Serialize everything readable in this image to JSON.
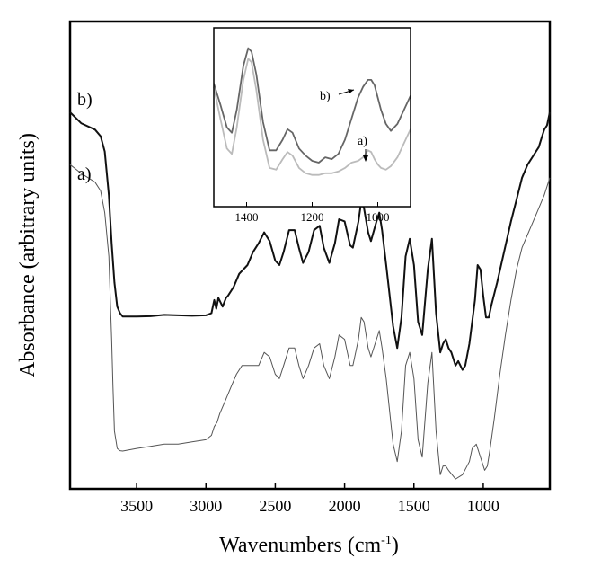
{
  "chart_data": {
    "type": "line",
    "xlabel": "Wavenumbers (cm",
    "xlabel_sup": "-1",
    "xlabel_close": ")",
    "ylabel": "Absorbance (arbitrary units)",
    "xlim": [
      3980,
      520
    ],
    "ylim": [
      0,
      1
    ],
    "x_ticks": [
      3500,
      3000,
      2500,
      2000,
      1500,
      1000
    ],
    "x_tick_labels": [
      "3500",
      "3000",
      "2500",
      "2000",
      "1500",
      "1000"
    ],
    "series": [
      {
        "name": "b)",
        "color": "#111111",
        "x": [
          3980,
          3900,
          3800,
          3760,
          3730,
          3700,
          3680,
          3660,
          3640,
          3620,
          3600,
          3500,
          3400,
          3300,
          3200,
          3100,
          3000,
          2960,
          2940,
          2925,
          2910,
          2880,
          2855,
          2840,
          2800,
          2760,
          2700,
          2660,
          2620,
          2580,
          2540,
          2500,
          2470,
          2440,
          2400,
          2360,
          2330,
          2300,
          2260,
          2220,
          2180,
          2150,
          2110,
          2070,
          2040,
          2000,
          1960,
          1940,
          1900,
          1880,
          1860,
          1830,
          1810,
          1770,
          1750,
          1730,
          1700,
          1650,
          1620,
          1590,
          1560,
          1530,
          1500,
          1470,
          1440,
          1400,
          1370,
          1340,
          1310,
          1290,
          1270,
          1250,
          1230,
          1200,
          1180,
          1150,
          1130,
          1100,
          1080,
          1060,
          1040,
          1020,
          1000,
          980,
          960,
          940,
          900,
          850,
          800,
          760,
          720,
          680,
          640,
          620,
          600,
          580,
          560,
          540,
          520
        ],
        "y": [
          0.85,
          0.825,
          0.81,
          0.795,
          0.76,
          0.66,
          0.55,
          0.46,
          0.405,
          0.39,
          0.382,
          0.382,
          0.383,
          0.386,
          0.385,
          0.384,
          0.385,
          0.39,
          0.42,
          0.4,
          0.425,
          0.405,
          0.425,
          0.43,
          0.45,
          0.48,
          0.5,
          0.53,
          0.55,
          0.575,
          0.555,
          0.51,
          0.5,
          0.53,
          0.58,
          0.58,
          0.54,
          0.505,
          0.53,
          0.58,
          0.59,
          0.54,
          0.505,
          0.55,
          0.605,
          0.6,
          0.545,
          0.54,
          0.6,
          0.645,
          0.63,
          0.575,
          0.555,
          0.6,
          0.62,
          0.58,
          0.5,
          0.36,
          0.31,
          0.38,
          0.52,
          0.56,
          0.5,
          0.37,
          0.34,
          0.49,
          0.56,
          0.39,
          0.3,
          0.32,
          0.33,
          0.31,
          0.3,
          0.27,
          0.28,
          0.26,
          0.27,
          0.32,
          0.37,
          0.42,
          0.5,
          0.49,
          0.43,
          0.38,
          0.38,
          0.41,
          0.46,
          0.53,
          0.6,
          0.65,
          0.7,
          0.73,
          0.75,
          0.76,
          0.77,
          0.79,
          0.81,
          0.82,
          0.85
        ]
      },
      {
        "name": "a)",
        "color": "#555555",
        "x": [
          3980,
          3900,
          3800,
          3760,
          3730,
          3700,
          3690,
          3680,
          3670,
          3660,
          3640,
          3620,
          3600,
          3500,
          3400,
          3300,
          3200,
          3100,
          3000,
          2960,
          2940,
          2920,
          2900,
          2860,
          2820,
          2780,
          2740,
          2700,
          2660,
          2620,
          2580,
          2540,
          2500,
          2470,
          2440,
          2400,
          2360,
          2330,
          2300,
          2260,
          2220,
          2180,
          2150,
          2110,
          2070,
          2040,
          2000,
          1960,
          1940,
          1900,
          1880,
          1860,
          1830,
          1810,
          1770,
          1750,
          1730,
          1700,
          1650,
          1620,
          1590,
          1560,
          1530,
          1500,
          1470,
          1440,
          1400,
          1370,
          1340,
          1310,
          1290,
          1270,
          1250,
          1200,
          1150,
          1100,
          1080,
          1050,
          1030,
          1010,
          990,
          970,
          950,
          920,
          880,
          840,
          800,
          760,
          720,
          680,
          640,
          600,
          560,
          520
        ],
        "y": [
          0.73,
          0.71,
          0.69,
          0.67,
          0.62,
          0.52,
          0.42,
          0.33,
          0.22,
          0.12,
          0.08,
          0.075,
          0.074,
          0.08,
          0.085,
          0.09,
          0.09,
          0.095,
          0.1,
          0.11,
          0.13,
          0.14,
          0.16,
          0.19,
          0.22,
          0.25,
          0.27,
          0.27,
          0.27,
          0.27,
          0.3,
          0.29,
          0.25,
          0.24,
          0.27,
          0.31,
          0.31,
          0.27,
          0.24,
          0.27,
          0.31,
          0.32,
          0.27,
          0.24,
          0.29,
          0.34,
          0.33,
          0.27,
          0.27,
          0.33,
          0.38,
          0.37,
          0.31,
          0.29,
          0.33,
          0.35,
          0.31,
          0.24,
          0.09,
          0.05,
          0.12,
          0.27,
          0.3,
          0.24,
          0.1,
          0.06,
          0.23,
          0.3,
          0.12,
          0.02,
          0.04,
          0.04,
          0.03,
          0.01,
          0.02,
          0.05,
          0.08,
          0.09,
          0.07,
          0.05,
          0.03,
          0.04,
          0.08,
          0.15,
          0.25,
          0.34,
          0.42,
          0.49,
          0.54,
          0.57,
          0.6,
          0.63,
          0.66,
          0.7
        ]
      }
    ],
    "series_labels": [
      {
        "text": "b)",
        "series": "b)"
      },
      {
        "text": "a)",
        "series": "a)"
      }
    ],
    "inset": {
      "xlim": [
        1500,
        900
      ],
      "x_ticks": [
        1400,
        1200,
        1000
      ],
      "x_tick_labels": [
        "1400",
        "1200",
        "1000"
      ],
      "series": [
        {
          "name": "b)",
          "color": "#666666",
          "x": [
            1500,
            1480,
            1460,
            1445,
            1430,
            1410,
            1395,
            1385,
            1370,
            1350,
            1330,
            1310,
            1290,
            1275,
            1260,
            1240,
            1220,
            1200,
            1180,
            1160,
            1140,
            1120,
            1100,
            1080,
            1060,
            1045,
            1030,
            1020,
            1010,
            1000,
            990,
            975,
            960,
            940,
            920,
            900
          ],
          "y": [
            0.7,
            0.58,
            0.45,
            0.42,
            0.55,
            0.8,
            0.9,
            0.88,
            0.75,
            0.48,
            0.32,
            0.32,
            0.38,
            0.44,
            0.42,
            0.33,
            0.29,
            0.26,
            0.25,
            0.28,
            0.27,
            0.3,
            0.38,
            0.5,
            0.62,
            0.68,
            0.72,
            0.72,
            0.69,
            0.62,
            0.55,
            0.47,
            0.43,
            0.47,
            0.55,
            0.63
          ]
        },
        {
          "name": "a)",
          "color": "#bbbbbb",
          "x": [
            1500,
            1480,
            1460,
            1445,
            1430,
            1410,
            1395,
            1385,
            1370,
            1350,
            1330,
            1310,
            1290,
            1275,
            1260,
            1240,
            1220,
            1200,
            1180,
            1160,
            1140,
            1120,
            1100,
            1080,
            1060,
            1045,
            1030,
            1020,
            1010,
            1000,
            990,
            975,
            960,
            940,
            920,
            900
          ],
          "y": [
            0.68,
            0.5,
            0.33,
            0.3,
            0.45,
            0.72,
            0.84,
            0.82,
            0.66,
            0.38,
            0.22,
            0.21,
            0.27,
            0.31,
            0.29,
            0.22,
            0.19,
            0.18,
            0.18,
            0.19,
            0.19,
            0.2,
            0.22,
            0.25,
            0.26,
            0.28,
            0.32,
            0.31,
            0.27,
            0.24,
            0.22,
            0.21,
            0.23,
            0.28,
            0.36,
            0.44
          ]
        }
      ],
      "labels": [
        {
          "text": "b)",
          "series": "b)"
        },
        {
          "text": "a)",
          "series": "a)"
        }
      ]
    }
  }
}
